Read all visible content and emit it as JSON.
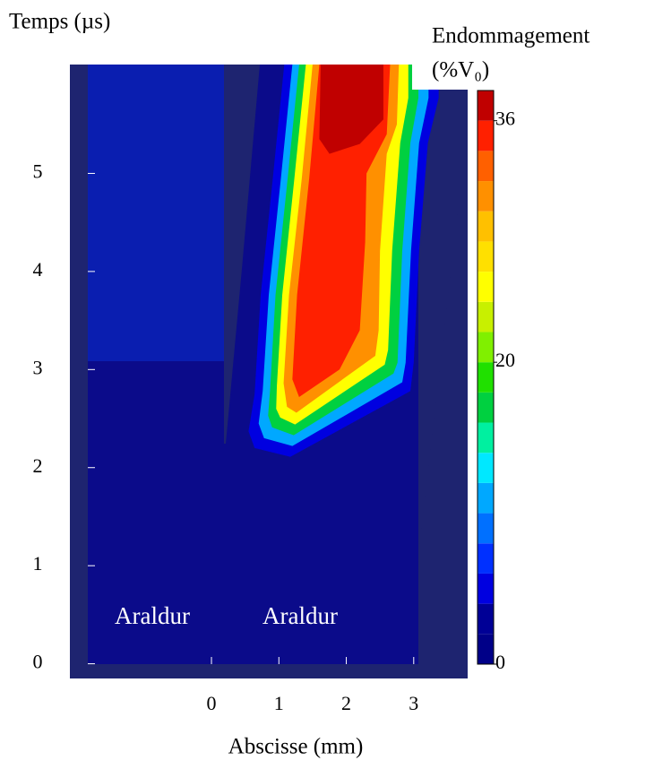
{
  "chart_data": {
    "type": "contour",
    "ylabel": "Temps (µs)",
    "xlabel": "Abscisse (mm)",
    "xlim": [
      -2.1,
      3.8
    ],
    "xticks": [
      0,
      1,
      2,
      3
    ],
    "ylim": [
      -0.15,
      6.11
    ],
    "yticks": [
      0,
      1,
      2,
      3,
      4,
      5
    ],
    "annotations": [
      "Araldur",
      "Araldur"
    ],
    "colorbar": {
      "label": [
        "Endommagement",
        "(%V₀)"
      ],
      "levels": [
        0,
        2,
        4,
        6,
        8,
        10,
        12,
        14,
        16,
        18,
        20,
        22,
        24,
        26,
        28,
        30,
        32,
        34,
        36,
        38
      ],
      "colors": [
        "#000088",
        "#000096",
        "#0000e0",
        "#0030ff",
        "#0070ff",
        "#00a8ff",
        "#00e8ff",
        "#00f0a0",
        "#00d040",
        "#20e000",
        "#80f000",
        "#c8f000",
        "#ffff00",
        "#ffe000",
        "#ffc000",
        "#ff9000",
        "#ff6000",
        "#ff2000",
        "#c00000"
      ],
      "ticks": [
        0,
        20,
        36
      ]
    },
    "regions": [
      {
        "level": 4,
        "points": [
          [
            1.08,
            6.11
          ],
          [
            0.91,
            4.95
          ],
          [
            0.73,
            3.76
          ],
          [
            0.64,
            2.75
          ],
          [
            0.55,
            2.37
          ],
          [
            0.64,
            2.2
          ],
          [
            1.17,
            2.11
          ],
          [
            2.95,
            2.78
          ],
          [
            3.0,
            3.07
          ],
          [
            3.08,
            4.21
          ],
          [
            3.21,
            5.31
          ],
          [
            3.37,
            5.77
          ],
          [
            3.37,
            6.11
          ]
        ]
      },
      {
        "level": 10,
        "points": [
          [
            1.2,
            6.11
          ],
          [
            1.03,
            4.95
          ],
          [
            0.85,
            3.76
          ],
          [
            0.76,
            2.78
          ],
          [
            0.7,
            2.45
          ],
          [
            0.78,
            2.3
          ],
          [
            1.2,
            2.22
          ],
          [
            2.83,
            2.87
          ],
          [
            2.88,
            3.07
          ],
          [
            2.96,
            4.21
          ],
          [
            3.08,
            5.31
          ],
          [
            3.22,
            5.77
          ],
          [
            3.22,
            6.11
          ]
        ]
      },
      {
        "level": 16,
        "points": [
          [
            1.3,
            6.11
          ],
          [
            1.13,
            4.95
          ],
          [
            0.95,
            3.76
          ],
          [
            0.87,
            2.8
          ],
          [
            0.84,
            2.53
          ],
          [
            0.9,
            2.41
          ],
          [
            1.22,
            2.33
          ],
          [
            2.7,
            2.96
          ],
          [
            2.76,
            3.07
          ],
          [
            2.83,
            4.21
          ],
          [
            2.95,
            5.31
          ],
          [
            3.07,
            5.77
          ],
          [
            3.07,
            6.11
          ]
        ]
      },
      {
        "level": 24,
        "points": [
          [
            1.4,
            6.11
          ],
          [
            1.23,
            4.95
          ],
          [
            1.05,
            3.76
          ],
          [
            0.97,
            2.83
          ],
          [
            0.96,
            2.6
          ],
          [
            1.02,
            2.51
          ],
          [
            1.24,
            2.44
          ],
          [
            2.57,
            3.05
          ],
          [
            2.62,
            3.2
          ],
          [
            2.68,
            4.21
          ],
          [
            2.8,
            5.31
          ],
          [
            2.92,
            5.77
          ],
          [
            2.92,
            6.11
          ]
        ]
      },
      {
        "level": 30,
        "points": [
          [
            1.5,
            6.11
          ],
          [
            1.34,
            4.95
          ],
          [
            1.15,
            3.76
          ],
          [
            1.07,
            2.86
          ],
          [
            1.12,
            2.62
          ],
          [
            1.26,
            2.56
          ],
          [
            2.43,
            3.14
          ],
          [
            2.48,
            3.4
          ],
          [
            2.5,
            4.21
          ],
          [
            2.6,
            5.2
          ],
          [
            2.75,
            5.5
          ],
          [
            2.78,
            6.11
          ]
        ]
      },
      {
        "level": 34,
        "points": [
          [
            1.6,
            6.11
          ],
          [
            1.45,
            4.95
          ],
          [
            1.27,
            3.76
          ],
          [
            1.2,
            2.9
          ],
          [
            1.3,
            2.72
          ],
          [
            1.9,
            3.0
          ],
          [
            2.2,
            3.4
          ],
          [
            2.28,
            4.3
          ],
          [
            2.3,
            5.0
          ],
          [
            2.6,
            5.4
          ],
          [
            2.65,
            6.11
          ]
        ]
      },
      {
        "level": 36,
        "points": [
          [
            1.62,
            6.11
          ],
          [
            1.6,
            5.35
          ],
          [
            1.75,
            5.2
          ],
          [
            2.2,
            5.3
          ],
          [
            2.55,
            5.55
          ],
          [
            2.55,
            6.11
          ]
        ]
      }
    ]
  }
}
